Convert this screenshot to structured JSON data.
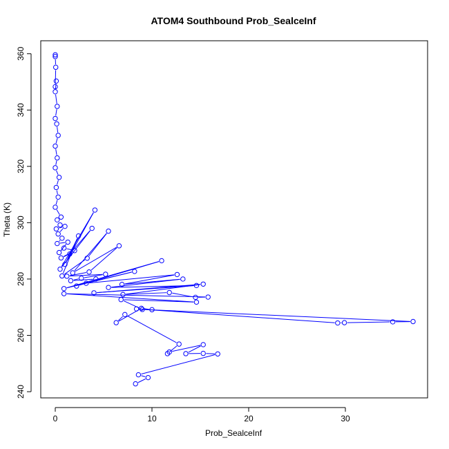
{
  "chart_data": {
    "type": "line",
    "title": "ATOM4 Southbound Prob_SealceInf",
    "xlabel": "Prob_SealceInf",
    "ylabel": "Theta (K)",
    "xlim": [
      -1.5,
      38.5
    ],
    "ylim": [
      237.8,
      364.6
    ],
    "xticks": [
      0,
      10,
      20,
      30
    ],
    "yticks": [
      240,
      260,
      280,
      300,
      320,
      340,
      360
    ],
    "markers": "open-circle",
    "color": "#0000ff",
    "series": [
      {
        "name": "ATOM4 Southbound",
        "x": [
          0.0,
          0.0,
          0.05,
          0.0,
          0.1,
          0.0,
          0.2,
          0.0,
          0.15,
          0.3,
          0.0,
          0.2,
          0.0,
          0.4,
          0.1,
          0.3,
          0.0,
          0.6,
          0.2,
          0.5,
          0.1,
          1.0,
          0.3,
          0.7,
          0.2,
          1.3,
          0.4,
          0.9,
          2.0,
          0.6,
          1.5,
          3.8,
          0.5,
          4.1,
          1.0,
          2.4,
          0.7,
          3.3,
          5.5,
          1.8,
          6.6,
          3.5,
          1.2,
          5.2,
          2.7,
          1.6,
          4.2,
          2.2,
          11.0,
          0.9,
          8.2,
          3.2,
          12.6,
          6.9,
          13.2,
          5.5,
          14.6,
          4.0,
          15.3,
          7.0,
          11.8,
          14.5,
          15.8,
          0.9,
          14.6,
          6.8,
          9.0,
          37.0,
          34.9,
          29.9,
          29.2,
          8.4,
          10.0,
          8.9,
          6.3,
          7.2,
          12.8,
          11.6,
          11.8,
          15.3,
          13.5,
          15.3,
          16.8,
          8.6,
          9.6,
          8.3
        ],
        "y": [
          359.6,
          359.0,
          355.2,
          348.3,
          350.3,
          346.5,
          341.3,
          337.0,
          335.1,
          331.0,
          327.2,
          323.0,
          319.5,
          316.1,
          312.5,
          309.1,
          305.5,
          302.0,
          301.0,
          299.2,
          297.8,
          298.7,
          296.0,
          294.5,
          292.6,
          293.1,
          289.4,
          291.0,
          290.1,
          287.5,
          288.9,
          298.0,
          283.5,
          304.5,
          285.2,
          295.3,
          281.1,
          287.4,
          297.0,
          282.2,
          291.8,
          282.5,
          281.0,
          281.7,
          280.3,
          279.4,
          280.0,
          277.5,
          286.5,
          276.6,
          282.7,
          278.5,
          281.6,
          278.1,
          280.0,
          277.0,
          277.7,
          275.1,
          278.2,
          274.5,
          275.2,
          273.5,
          273.6,
          274.8,
          271.8,
          272.7,
          269.2,
          264.9,
          264.8,
          264.5,
          264.4,
          269.4,
          269.1,
          269.6,
          264.5,
          267.4,
          256.9,
          253.5,
          254.1,
          256.7,
          253.5,
          253.6,
          253.4,
          246.0,
          245.0,
          242.8
        ]
      }
    ]
  }
}
